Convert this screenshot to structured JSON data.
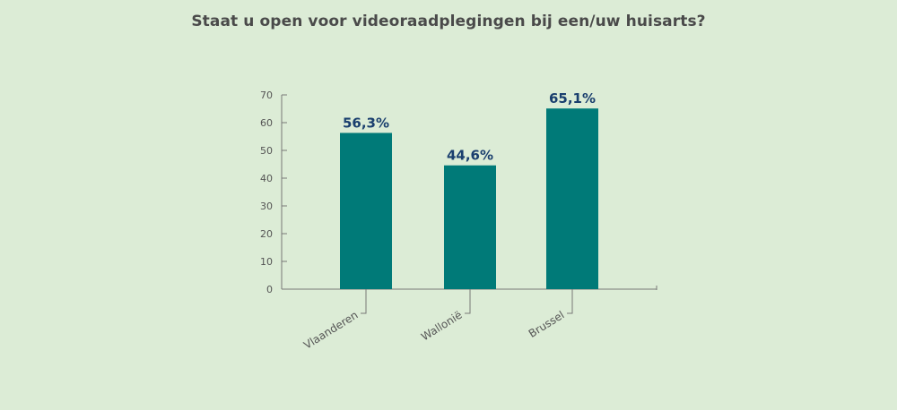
{
  "chart_data": {
    "type": "bar",
    "title": "Staat u open voor videoraadplegingen bij een/uw huisarts?",
    "categories": [
      "Vlaanderen",
      "Wallonië",
      "Brussel"
    ],
    "values": [
      56.3,
      44.6,
      65.1
    ],
    "data_labels": [
      "56,3%",
      "44,6%",
      "65,1%"
    ],
    "yticks": [
      "0",
      "10",
      "20",
      "30",
      "40",
      "50",
      "60",
      "70"
    ],
    "ylim": [
      0,
      70
    ],
    "grid": false,
    "legend": "none",
    "xlabel": "",
    "ylabel": ""
  },
  "colors": {
    "bar": "#007a78",
    "data_label": "#1a3f6e",
    "axis": "#777777",
    "background": "#dcecd6"
  }
}
